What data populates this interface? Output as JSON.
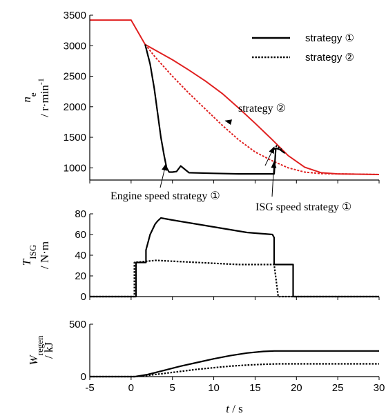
{
  "chart_data": [
    {
      "id": "ne",
      "type": "line",
      "ylabel_var": "n",
      "ylabel_sub": "e",
      "ylabel_unit": "/ r·min",
      "ylabel_unit_sup": "-1",
      "xlim": [
        -5,
        30
      ],
      "ylim": [
        800,
        3500
      ],
      "yticks": [
        1000,
        1500,
        2000,
        2500,
        3000,
        3500
      ],
      "legend": [
        {
          "label": "strategy ①",
          "style": "solid"
        },
        {
          "label": "strategy ②",
          "style": "dotted"
        }
      ],
      "annotations": [
        {
          "text": "strategy ②",
          "point": [
            11.4,
            1770
          ]
        },
        {
          "text": "Engine speed strategy ①",
          "point": [
            4.2,
            1060
          ]
        },
        {
          "text": "ISG speed  strategy ①",
          "point": [
            17.3,
            1100
          ]
        },
        {
          "text": "",
          "point": [
            17.3,
            1340
          ]
        }
      ],
      "series": [
        {
          "color": "#e02020",
          "style": "solid",
          "x": [
            -5,
            -2,
            0,
            1.7,
            3,
            5,
            7,
            9,
            11,
            13,
            15,
            17,
            19,
            21,
            23,
            25,
            28,
            30
          ],
          "y": [
            3420,
            3420,
            3420,
            3020,
            2920,
            2770,
            2600,
            2420,
            2220,
            1980,
            1730,
            1470,
            1200,
            1010,
            920,
            900,
            895,
            890
          ]
        },
        {
          "color": "#e02020",
          "style": "dotted",
          "x": [
            1.7,
            3,
            5,
            7,
            9,
            11,
            13,
            15,
            17,
            19,
            21,
            23,
            25,
            28,
            30
          ],
          "y": [
            3020,
            2800,
            2500,
            2220,
            1960,
            1700,
            1460,
            1260,
            1120,
            1000,
            930,
            905,
            900,
            895,
            890
          ]
        },
        {
          "color": "#000000",
          "style": "solid",
          "x": [
            1.7,
            2.3,
            2.8,
            3.2,
            3.6,
            4.0,
            4.3,
            4.6,
            5.0,
            5.5,
            6.0,
            7,
            10,
            13,
            15,
            17.3,
            17.5,
            18.0,
            18.6
          ],
          "y": [
            3020,
            2700,
            2300,
            1900,
            1500,
            1200,
            1000,
            930,
            930,
            940,
            1030,
            920,
            910,
            900,
            900,
            900,
            1320,
            1300,
            1240
          ]
        },
        {
          "color": "#000000",
          "style": "dotted",
          "x": [
            17.3,
            17.6,
            18.2
          ],
          "y": [
            1300,
            1360,
            1300
          ]
        }
      ]
    },
    {
      "id": "tisg",
      "type": "line",
      "ylabel_var": "T",
      "ylabel_sub": "ISG",
      "ylabel_unit": "/ N·m",
      "xlim": [
        -5,
        30
      ],
      "ylim": [
        0,
        80
      ],
      "yticks": [
        0,
        20,
        40,
        60,
        80
      ],
      "series": [
        {
          "color": "#000000",
          "style": "solid",
          "x": [
            -5,
            0.6,
            0.6,
            1.8,
            1.8,
            2.3,
            2.9,
            3.2,
            3.6,
            5,
            8,
            11,
            14,
            17.1,
            17.3,
            17.3,
            19.6,
            19.6,
            30
          ],
          "y": [
            0,
            0,
            33,
            33,
            45,
            60,
            70,
            73,
            76,
            74,
            70,
            66,
            62,
            60,
            57,
            31,
            31,
            0,
            0
          ]
        },
        {
          "color": "#000000",
          "style": "dotted",
          "x": [
            -5,
            0.4,
            0.4,
            3,
            8,
            13,
            17.1,
            17.3,
            17.8,
            17.8,
            30
          ],
          "y": [
            0,
            0,
            33,
            35,
            33,
            31,
            31,
            31,
            0,
            0,
            0
          ]
        }
      ]
    },
    {
      "id": "wregen",
      "type": "line",
      "ylabel_var": "W",
      "ylabel_sub": "regen",
      "ylabel_unit": "/ kJ",
      "xlabel_var": "t",
      "xlabel_unit": "/ s",
      "xlim": [
        -5,
        30
      ],
      "ylim": [
        0,
        500
      ],
      "yticks": [
        0,
        500
      ],
      "xticks": [
        -5,
        0,
        5,
        10,
        15,
        20,
        25,
        30
      ],
      "series": [
        {
          "color": "#000000",
          "style": "solid",
          "x": [
            -5,
            0.5,
            2,
            4,
            6,
            8,
            10,
            12,
            14,
            16,
            17.3,
            19.6,
            30
          ],
          "y": [
            0,
            0,
            20,
            60,
            100,
            135,
            170,
            200,
            225,
            240,
            245,
            245,
            245
          ]
        },
        {
          "color": "#000000",
          "style": "dotted",
          "x": [
            -5,
            0.4,
            2,
            4,
            6,
            8,
            10,
            12,
            14,
            16,
            17.8,
            30
          ],
          "y": [
            0,
            0,
            12,
            30,
            50,
            70,
            85,
            100,
            110,
            118,
            122,
            122
          ]
        }
      ]
    }
  ]
}
